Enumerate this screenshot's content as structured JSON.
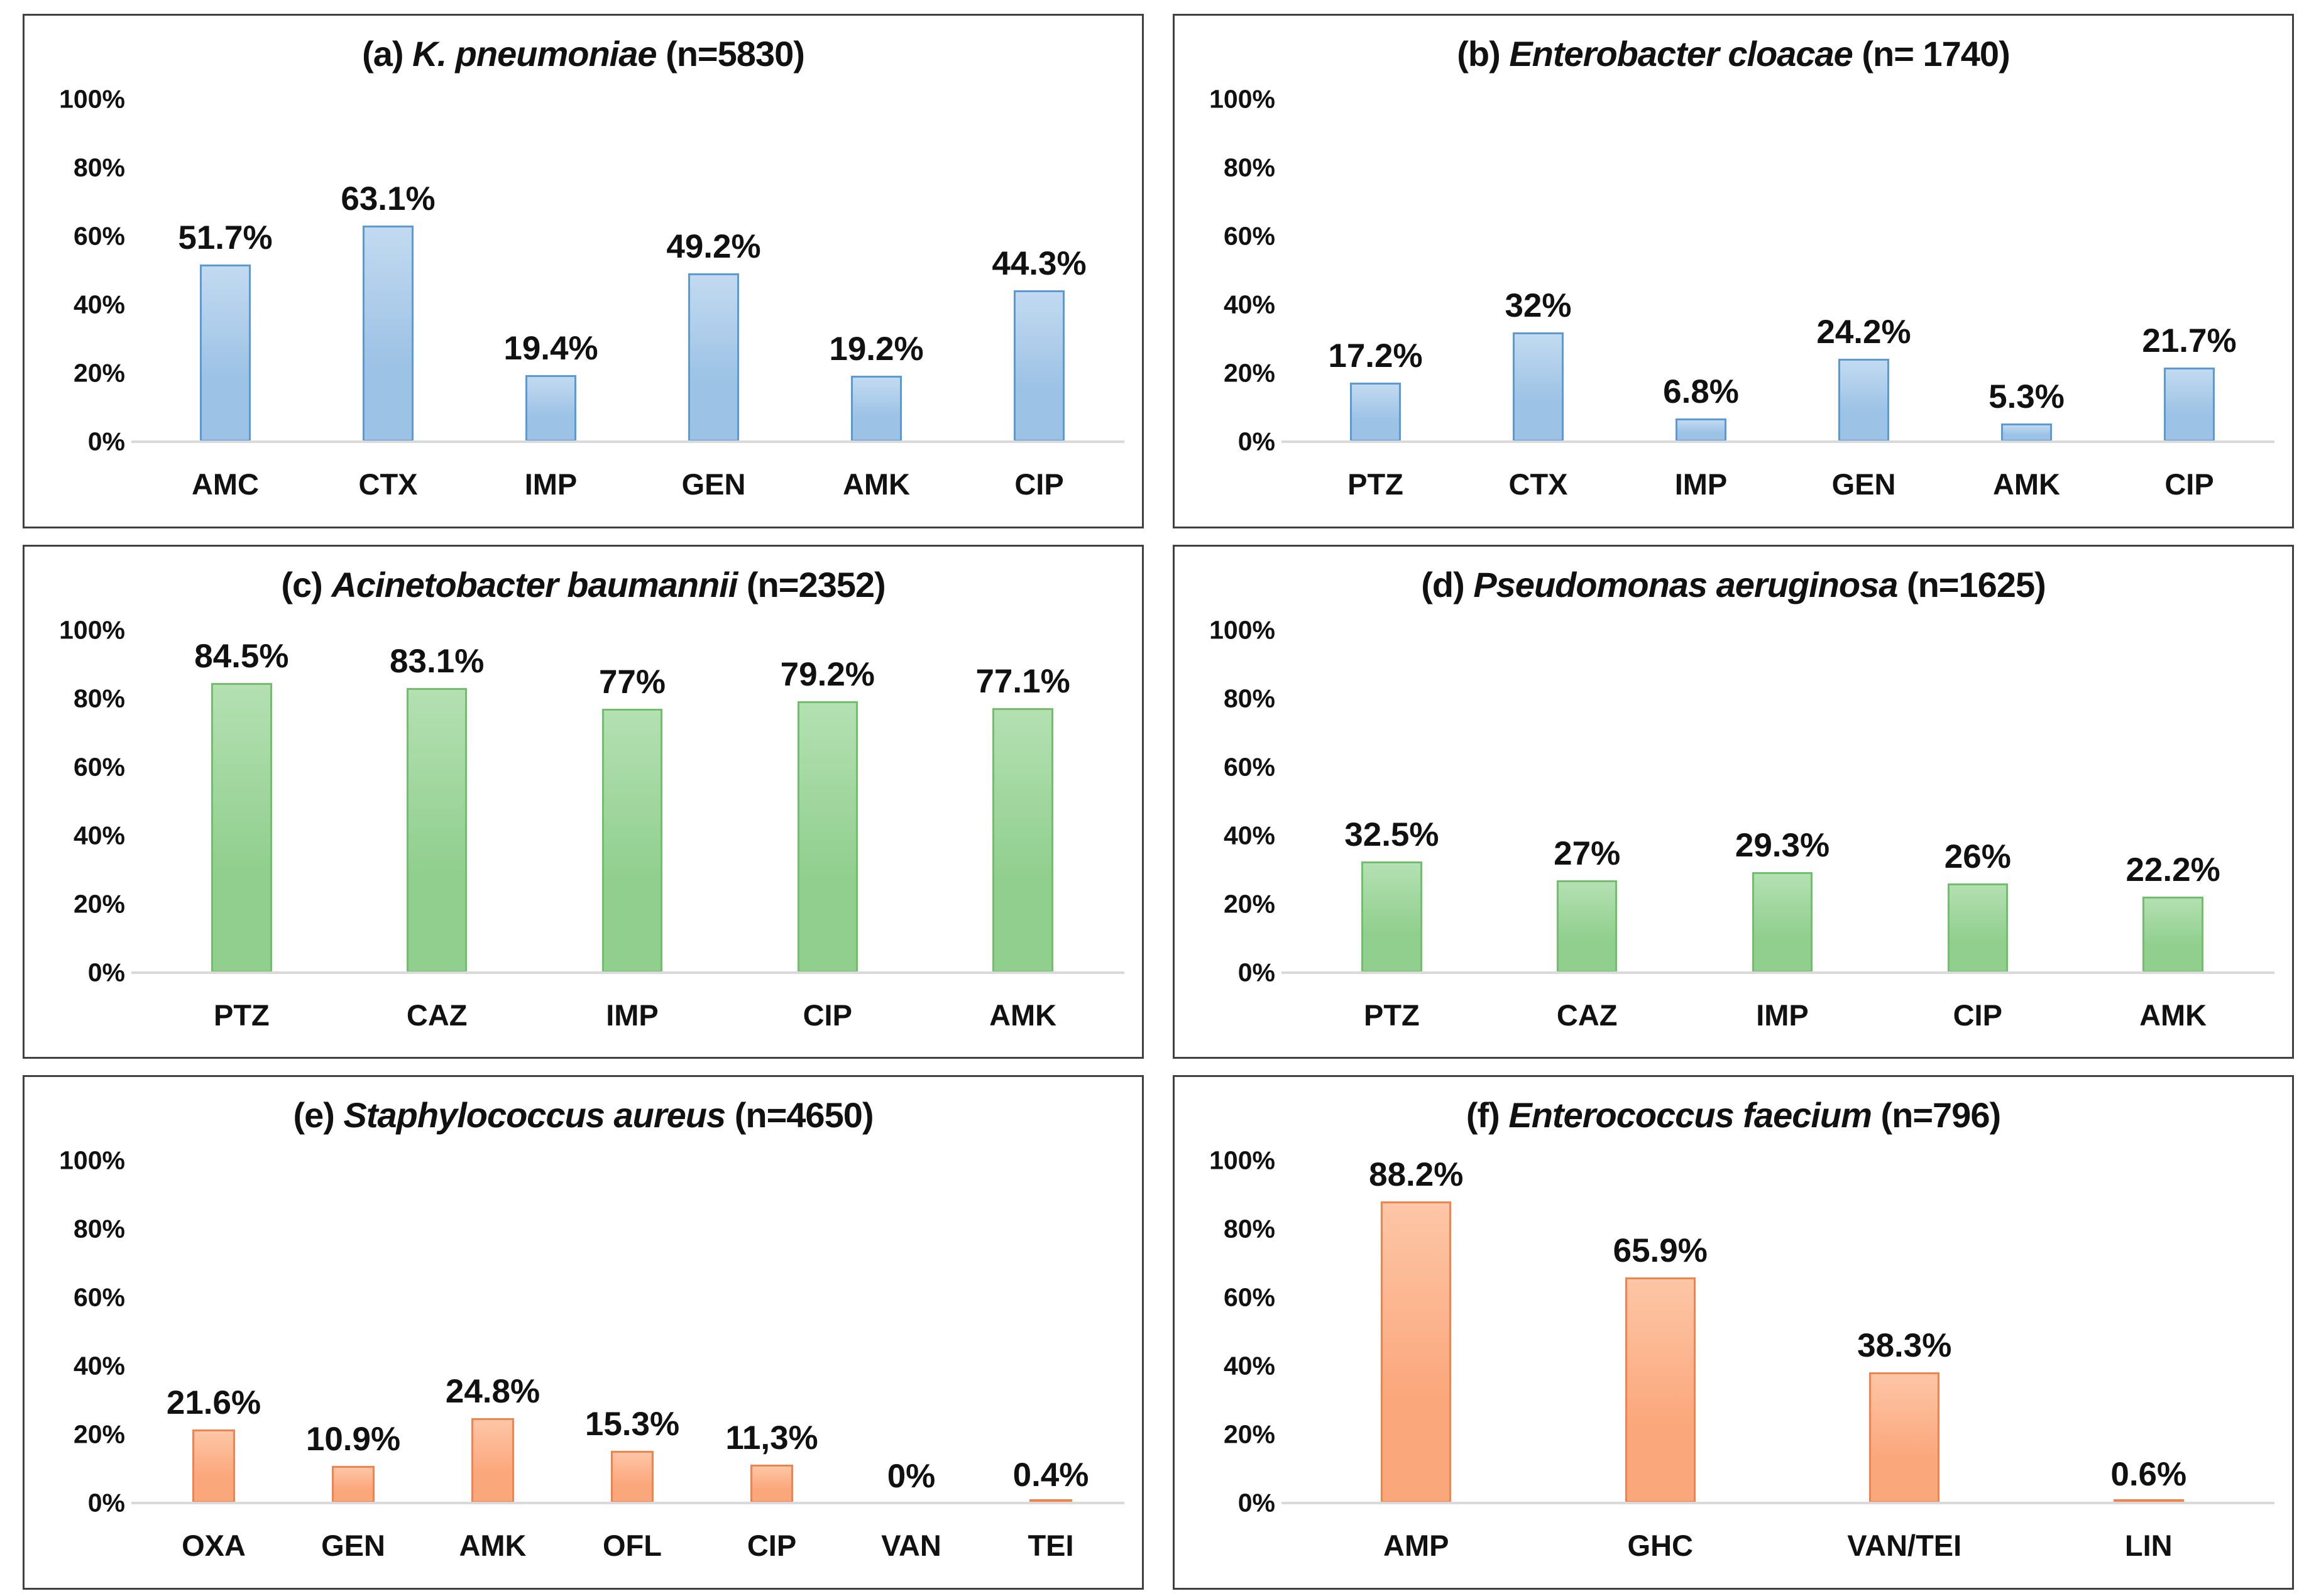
{
  "figure": {
    "background": "#ffffff",
    "panel_border_color": "#404040",
    "baseline_color": "#d9d9d9",
    "text_color": "#111111"
  },
  "chart_data": {
    "type": "bar",
    "grid": false,
    "ylim": [
      0,
      100
    ],
    "y_ticks": [
      "100%",
      "80%",
      "60%",
      "40%",
      "20%",
      "0%"
    ],
    "panels": [
      {
        "id": "a",
        "title_prefix": "(a) ",
        "title_species": "K. pneumoniae",
        "title_suffix": " (n=5830)",
        "color_fill": "#9CC2E5",
        "color_fill_light": "#C2DAF0",
        "color_border": "#5B9BD5",
        "categories": [
          "AMC",
          "CTX",
          "IMP",
          "GEN",
          "AMK",
          "CIP"
        ],
        "values": [
          51.7,
          63.1,
          19.4,
          49.2,
          19.2,
          44.3
        ],
        "value_labels": [
          "51.7%",
          "63.1%",
          "19.4%",
          "49.2%",
          "19.2%",
          "44.3%"
        ]
      },
      {
        "id": "b",
        "title_prefix": "(b) ",
        "title_species": "Enterobacter cloacae",
        "title_suffix": " (n= 1740)",
        "color_fill": "#9CC2E5",
        "color_fill_light": "#C2DAF0",
        "color_border": "#5B9BD5",
        "categories": [
          "PTZ",
          "CTX",
          "IMP",
          "GEN",
          "AMK",
          "CIP"
        ],
        "values": [
          17.2,
          32,
          6.8,
          24.2,
          5.3,
          21.7
        ],
        "value_labels": [
          "17.2%",
          "32%",
          "6.8%",
          "24.2%",
          "5.3%",
          "21.7%"
        ]
      },
      {
        "id": "c",
        "title_prefix": "(c) ",
        "title_species": "Acinetobacter baumannii",
        "title_suffix": " (n=2352)",
        "color_fill": "#90CF8E",
        "color_fill_light": "#B4E0B2",
        "color_border": "#6FBF6D",
        "categories": [
          "PTZ",
          "CAZ",
          "IMP",
          "CIP",
          "AMK"
        ],
        "values": [
          84.5,
          83.1,
          77,
          79.2,
          77.1
        ],
        "value_labels": [
          "84.5%",
          "83.1%",
          "77%",
          "79.2%",
          "77.1%"
        ]
      },
      {
        "id": "d",
        "title_prefix": "(d) ",
        "title_species": "Pseudomonas aeruginosa",
        "title_suffix": " (n=1625)",
        "color_fill": "#90CF8E",
        "color_fill_light": "#B4E0B2",
        "color_border": "#6FBF6D",
        "categories": [
          "PTZ",
          "CAZ",
          "IMP",
          "CIP",
          "AMK"
        ],
        "values": [
          32.5,
          27,
          29.3,
          26,
          22.2
        ],
        "value_labels": [
          "32.5%",
          "27%",
          "29.3%",
          "26%",
          "22.2%"
        ]
      },
      {
        "id": "e",
        "title_prefix": "(e) ",
        "title_species": "Staphylococcus aureus",
        "title_suffix": " (n=4650)",
        "color_fill": "#FBA77C",
        "color_fill_light": "#FDC6A6",
        "color_border": "#F0834E",
        "categories": [
          "OXA",
          "GEN",
          "AMK",
          "OFL",
          "CIP",
          "VAN",
          "TEI"
        ],
        "values": [
          21.6,
          10.9,
          24.8,
          15.3,
          11.3,
          0,
          0.4
        ],
        "value_labels": [
          "21.6%",
          "10.9%",
          "24.8%",
          "15.3%",
          "11,3%",
          "0%",
          "0.4%"
        ]
      },
      {
        "id": "f",
        "title_prefix": "(f) ",
        "title_species": "Enterococcus faecium",
        "title_suffix": " (n=796)",
        "color_fill": "#FBA77C",
        "color_fill_light": "#FDC6A6",
        "color_border": "#F0834E",
        "categories": [
          "AMP",
          "GHC",
          "VAN/TEI",
          "LIN"
        ],
        "values": [
          88.2,
          65.9,
          38.3,
          0.6
        ],
        "value_labels": [
          "88.2%",
          "65.9%",
          "38.3%",
          "0.6%"
        ]
      }
    ]
  }
}
